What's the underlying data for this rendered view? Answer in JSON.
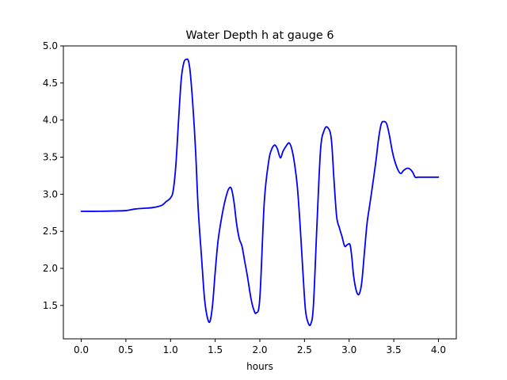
{
  "chart_data": {
    "type": "line",
    "title": "Water Depth h at gauge 6",
    "xlabel": "hours",
    "ylabel": "",
    "xlim": [
      -0.2,
      4.2
    ],
    "ylim": [
      1.05,
      5.0
    ],
    "xticks": [
      0.0,
      0.5,
      1.0,
      1.5,
      2.0,
      2.5,
      3.0,
      3.5,
      4.0
    ],
    "xtick_labels": [
      "0.0",
      "0.5",
      "1.0",
      "1.5",
      "2.0",
      "2.5",
      "3.0",
      "3.5",
      "4.0"
    ],
    "yticks": [
      1.5,
      2.0,
      2.5,
      3.0,
      3.5,
      4.0,
      4.5,
      5.0
    ],
    "ytick_labels": [
      "1.5",
      "2.0",
      "2.5",
      "3.0",
      "3.5",
      "4.0",
      "4.5",
      "5.0"
    ],
    "grid": false,
    "series": [
      {
        "color": "#0000ff",
        "x": [
          0.0,
          0.2,
          0.4,
          0.5,
          0.6,
          0.7,
          0.8,
          0.9,
          0.95,
          1.0,
          1.03,
          1.06,
          1.09,
          1.12,
          1.15,
          1.18,
          1.2,
          1.22,
          1.25,
          1.28,
          1.31,
          1.35,
          1.38,
          1.41,
          1.44,
          1.47,
          1.5,
          1.53,
          1.56,
          1.59,
          1.62,
          1.65,
          1.68,
          1.71,
          1.74,
          1.77,
          1.8,
          1.83,
          1.86,
          1.9,
          1.93,
          1.96,
          2.0,
          2.05,
          2.1,
          2.13,
          2.16,
          2.18,
          2.2,
          2.23,
          2.26,
          2.3,
          2.33,
          2.36,
          2.39,
          2.42,
          2.45,
          2.48,
          2.51,
          2.54,
          2.57,
          2.6,
          2.64,
          2.68,
          2.72,
          2.76,
          2.8,
          2.83,
          2.86,
          2.89,
          2.92,
          2.95,
          2.98,
          3.01,
          3.03,
          3.05,
          3.08,
          3.11,
          3.14,
          3.17,
          3.2,
          3.23,
          3.26,
          3.3,
          3.33,
          3.36,
          3.39,
          3.42,
          3.45,
          3.48,
          3.51,
          3.55,
          3.58,
          3.61,
          3.65,
          3.68,
          3.71,
          3.74,
          3.77,
          3.8,
          3.83,
          3.86,
          3.89,
          3.92,
          3.95,
          3.98,
          4.0
        ],
        "y": [
          2.77,
          2.77,
          2.775,
          2.78,
          2.8,
          2.81,
          2.82,
          2.85,
          2.9,
          2.95,
          3.05,
          3.4,
          4.0,
          4.55,
          4.78,
          4.82,
          4.8,
          4.65,
          4.2,
          3.6,
          2.8,
          2.1,
          1.6,
          1.35,
          1.28,
          1.5,
          1.95,
          2.35,
          2.6,
          2.8,
          2.96,
          3.07,
          3.08,
          2.9,
          2.6,
          2.4,
          2.3,
          2.1,
          1.9,
          1.6,
          1.45,
          1.4,
          1.6,
          2.9,
          3.45,
          3.6,
          3.66,
          3.65,
          3.6,
          3.49,
          3.58,
          3.66,
          3.69,
          3.6,
          3.4,
          3.1,
          2.6,
          2.0,
          1.45,
          1.27,
          1.25,
          1.5,
          2.6,
          3.6,
          3.86,
          3.9,
          3.75,
          3.2,
          2.7,
          2.55,
          2.43,
          2.3,
          2.32,
          2.32,
          2.15,
          1.9,
          1.7,
          1.65,
          1.8,
          2.2,
          2.6,
          2.85,
          3.1,
          3.45,
          3.75,
          3.95,
          3.98,
          3.95,
          3.8,
          3.6,
          3.45,
          3.32,
          3.28,
          3.32,
          3.35,
          3.34,
          3.3,
          3.23,
          3.23,
          3.23,
          3.23,
          3.23,
          3.23,
          3.23,
          3.23,
          3.23,
          3.23
        ]
      }
    ]
  }
}
